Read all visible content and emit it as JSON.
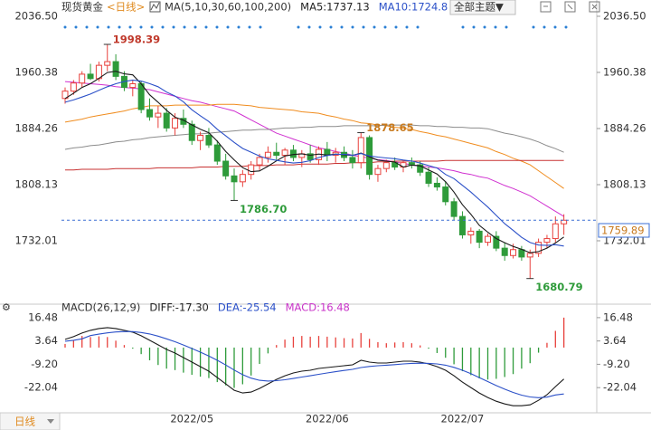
{
  "toolbar": {
    "symbol": "现货黄金",
    "period": "<日线>",
    "theme": "全部主题▼",
    "period_selector": "日线"
  },
  "chart_data": {
    "type": "candlestick",
    "indicator_label": "MA(5,10,30,60,100,200)",
    "ma_readouts": [
      {
        "text": "MA5:1737.13",
        "color": "#222222"
      },
      {
        "text": "MA10:1724.8",
        "color": "#2b50c8"
      }
    ],
    "categories": [
      null,
      null,
      null,
      null,
      null,
      null,
      null,
      null,
      null,
      null,
      null,
      null,
      null,
      null,
      null,
      "2022/05",
      null,
      null,
      null,
      null,
      null,
      null,
      null,
      null,
      null,
      null,
      null,
      null,
      null,
      null,
      null,
      "2022/06",
      null,
      null,
      null,
      null,
      null,
      null,
      null,
      null,
      null,
      null,
      null,
      null,
      null,
      null,
      null,
      "2022/07",
      null,
      null,
      null,
      null,
      null,
      null,
      null,
      null,
      null,
      null,
      null,
      null
    ],
    "open": [
      1925,
      1935,
      1946,
      1958,
      1952,
      1970,
      1975,
      1955,
      1940,
      1945,
      1910,
      1900,
      1905,
      1885,
      1898,
      1890,
      1868,
      1875,
      1862,
      1840,
      1820,
      1812,
      1822,
      1835,
      1845,
      1852,
      1848,
      1855,
      1845,
      1850,
      1842,
      1856,
      1848,
      1852,
      1845,
      1838,
      1872,
      1822,
      1830,
      1838,
      1832,
      1838,
      1835,
      1825,
      1810,
      1805,
      1785,
      1765,
      1740,
      1745,
      1730,
      1738,
      1722,
      1712,
      1720,
      1710,
      1715,
      1730,
      1735,
      1755
    ],
    "high": [
      1940,
      1950,
      1962,
      1972,
      1975,
      1998.39,
      1985,
      1962,
      1950,
      1948,
      1925,
      1915,
      1912,
      1905,
      1910,
      1895,
      1880,
      1885,
      1868,
      1850,
      1830,
      1828,
      1840,
      1850,
      1860,
      1865,
      1858,
      1862,
      1855,
      1862,
      1860,
      1866,
      1858,
      1860,
      1855,
      1878.65,
      1875,
      1835,
      1842,
      1845,
      1842,
      1845,
      1840,
      1832,
      1818,
      1812,
      1790,
      1772,
      1750,
      1748,
      1742,
      1745,
      1730,
      1728,
      1725,
      1720,
      1735,
      1740,
      1765,
      1768
    ],
    "low": [
      1918,
      1930,
      1940,
      1950,
      1948,
      1962,
      1950,
      1935,
      1928,
      1905,
      1895,
      1885,
      1880,
      1875,
      1885,
      1862,
      1855,
      1858,
      1835,
      1815,
      1786.7,
      1805,
      1815,
      1828,
      1838,
      1842,
      1835,
      1840,
      1832,
      1838,
      1835,
      1840,
      1838,
      1840,
      1830,
      1830,
      1815,
      1812,
      1825,
      1828,
      1825,
      1830,
      1820,
      1805,
      1800,
      1780,
      1760,
      1735,
      1728,
      1722,
      1725,
      1718,
      1705,
      1708,
      1705,
      1680.79,
      1710,
      1722,
      1730,
      1740
    ],
    "close": [
      1935,
      1946,
      1958,
      1952,
      1970,
      1975,
      1955,
      1940,
      1945,
      1910,
      1900,
      1905,
      1885,
      1898,
      1890,
      1868,
      1875,
      1862,
      1840,
      1820,
      1812,
      1822,
      1835,
      1845,
      1852,
      1848,
      1855,
      1845,
      1850,
      1842,
      1856,
      1848,
      1852,
      1845,
      1838,
      1872,
      1822,
      1830,
      1838,
      1832,
      1838,
      1835,
      1825,
      1810,
      1805,
      1785,
      1765,
      1740,
      1745,
      1730,
      1738,
      1722,
      1712,
      1720,
      1710,
      1715,
      1730,
      1735,
      1755,
      1759.89
    ],
    "up_color": "#e8413c",
    "down_color": "#2e9b3a",
    "ma_lines": [
      {
        "color": "#1a1a1a",
        "values": [
          1925,
          1932,
          1940,
          1945,
          1952.2,
          1960.2,
          1962,
          1958.4,
          1957,
          1945,
          1930,
          1920,
          1909,
          1899.6,
          1895.6,
          1889.2,
          1883.2,
          1878.6,
          1867,
          1853,
          1841.8,
          1831.2,
          1825.8,
          1826.8,
          1833.2,
          1840.4,
          1847,
          1849,
          1850,
          1848,
          1849.6,
          1848.2,
          1849.6,
          1848.6,
          1847.8,
          1851,
          1845.8,
          1841.4,
          1840,
          1838.8,
          1832,
          1834.6,
          1833.6,
          1828,
          1822.6,
          1812,
          1798,
          1781,
          1768,
          1753,
          1743.6,
          1735,
          1729.4,
          1724.4,
          1720.4,
          1715.8,
          1717.4,
          1722,
          1729,
          1737.13
        ]
      },
      {
        "color": "#2b50c8",
        "values": [
          1920,
          1923,
          1927,
          1931,
          1936,
          1941,
          1945,
          1948,
          1950,
          1948.6,
          1945.1,
          1941,
          1933.7,
          1928.3,
          1920.3,
          1909.6,
          1901.6,
          1893.8,
          1883.3,
          1874.3,
          1865.5,
          1857.2,
          1852.2,
          1846.9,
          1843.1,
          1841.1,
          1839.1,
          1837.4,
          1838.4,
          1840.6,
          1845,
          1847.6,
          1849.3,
          1849.3,
          1847.9,
          1850.3,
          1847,
          1845.5,
          1844.3,
          1843.3,
          1841.5,
          1840.2,
          1837.5,
          1834,
          1830.7,
          1822,
          1816.3,
          1807.3,
          1798,
          1787.8,
          1777.8,
          1766.5,
          1755.2,
          1746.2,
          1736.7,
          1729.7,
          1726.2,
          1725.7,
          1726.7,
          1724.8
        ]
      },
      {
        "color": "#d030d0",
        "values": [
          1948,
          1947,
          1946,
          1945,
          1944,
          1943,
          1941,
          1940,
          1939,
          1938,
          1937,
          1934,
          1931,
          1928,
          1925,
          1922,
          1920,
          1917,
          1914,
          1911,
          1908,
          1902,
          1896,
          1890,
          1884,
          1878,
          1874,
          1870,
          1866,
          1862,
          1858,
          1856,
          1853,
          1851,
          1848,
          1846,
          1844,
          1842,
          1841,
          1839,
          1837,
          1835,
          1834,
          1832,
          1831,
          1829,
          1827,
          1824,
          1822,
          1819,
          1817,
          1812,
          1807,
          1803,
          1798,
          1793,
          1786,
          1779,
          1772,
          1765
        ]
      },
      {
        "color": "#f08c1e",
        "values": [
          1893,
          1895,
          1897,
          1900,
          1902,
          1904,
          1906,
          1908,
          1911,
          1913,
          1915,
          1915,
          1915,
          1916,
          1916,
          1916,
          1916,
          1916,
          1917,
          1917,
          1917,
          1916,
          1915,
          1913,
          1912,
          1911,
          1910,
          1909,
          1907,
          1906,
          1905,
          1902,
          1900,
          1897,
          1895,
          1892,
          1891,
          1889,
          1888,
          1886,
          1885,
          1883,
          1880,
          1878,
          1875,
          1873,
          1870,
          1867,
          1864,
          1861,
          1858,
          1853,
          1849,
          1844,
          1840,
          1835,
          1827,
          1819,
          1811,
          1803
        ]
      },
      {
        "color": "#c83232",
        "values": [
          1828,
          1828,
          1829,
          1829,
          1829,
          1829,
          1830,
          1830,
          1830,
          1830,
          1830,
          1831,
          1831,
          1831,
          1831,
          1831,
          1832,
          1832,
          1832,
          1833,
          1833,
          1833,
          1834,
          1834,
          1834,
          1835,
          1835,
          1835,
          1836,
          1836,
          1836,
          1836,
          1837,
          1837,
          1838,
          1838,
          1838,
          1839,
          1839,
          1840,
          1840,
          1840,
          1840,
          1840,
          1840,
          1841,
          1841,
          1841,
          1841,
          1841,
          1841,
          1841,
          1841,
          1841,
          1841,
          1841,
          1841,
          1841,
          1841,
          1841
        ]
      },
      {
        "color": "#8c8c8c",
        "values": [
          1856,
          1858,
          1859,
          1861,
          1862,
          1864,
          1866,
          1867,
          1869,
          1870,
          1872,
          1873,
          1874,
          1875,
          1876,
          1877,
          1877,
          1878,
          1879,
          1880,
          1881,
          1882,
          1882,
          1883,
          1883,
          1884,
          1885,
          1885,
          1886,
          1886,
          1887,
          1887,
          1887,
          1888,
          1888,
          1888,
          1888,
          1888,
          1889,
          1889,
          1889,
          1889,
          1888,
          1888,
          1887,
          1887,
          1886,
          1886,
          1885,
          1885,
          1884,
          1881,
          1878,
          1876,
          1873,
          1870,
          1866,
          1861,
          1857,
          1852
        ]
      }
    ],
    "annotations": [
      {
        "value": 1998.39,
        "label": "1998.39",
        "color": "#c0392b"
      },
      {
        "value": 1786.7,
        "label": "1786.70",
        "color": "#2e9b3a"
      },
      {
        "value": 1878.65,
        "label": "1878.65",
        "color": "#c87a1e"
      },
      {
        "value": 1680.79,
        "label": "1680.79",
        "color": "#2e9b3a"
      }
    ],
    "last_price_color": "#3b6fd4",
    "ylim": [
      1653.4,
      2046.3
    ],
    "yticks": [
      {
        "value": 2036.5,
        "label": "2036.50"
      },
      1960.38,
      1884.26,
      1808.13,
      1732.01
    ],
    "macd": {
      "type": "macd",
      "title": "MACD(26,12,9)",
      "readouts": [
        {
          "text": "DIFF:-17.30",
          "color": "#222222"
        },
        {
          "text": "DEA:-25.54",
          "color": "#2b50c8"
        },
        {
          "text": "MACD:16.48",
          "color": "#c832c8"
        }
      ],
      "diff": [
        4.5,
        6,
        8,
        9.5,
        10.5,
        11,
        10.5,
        9.5,
        8.5,
        6.5,
        4,
        1.5,
        -1,
        -3,
        -5.5,
        -8,
        -10.5,
        -13,
        -16.5,
        -20,
        -23.5,
        -25,
        -24.5,
        -22.5,
        -20,
        -17.5,
        -15.5,
        -14,
        -13,
        -12.5,
        -11.5,
        -11,
        -10.5,
        -10,
        -9.5,
        -7,
        -8,
        -8.5,
        -8.5,
        -8,
        -7.5,
        -7.5,
        -8,
        -9,
        -10.5,
        -12.5,
        -15.5,
        -19,
        -22,
        -25,
        -27.5,
        -29.5,
        -31,
        -32,
        -32,
        -31.5,
        -29,
        -26,
        -21.5,
        -17.3
      ],
      "dea": [
        3.5,
        4,
        4.8,
        6.6,
        7.4,
        8.1,
        8.6,
        8.8,
        8.8,
        8.3,
        7.5,
        6.3,
        4.8,
        3.2,
        1.4,
        -0.5,
        -2.5,
        -4.6,
        -7,
        -9.6,
        -12.4,
        -14.9,
        -16.8,
        -18,
        -18.4,
        -18.2,
        -17.7,
        -17,
        -16.2,
        -15.5,
        -14.7,
        -14,
        -13.3,
        -12.6,
        -12,
        -11,
        -10.4,
        -10,
        -9.7,
        -9.4,
        -9,
        -8.7,
        -8.6,
        -8.7,
        -9,
        -9.7,
        -10.9,
        -12.5,
        -14.4,
        -16.5,
        -18.7,
        -20.9,
        -22.9,
        -24.7,
        -26.2,
        -27.2,
        -27.6,
        -27.3,
        -26.1,
        -25.54
      ],
      "hist": [
        2,
        4,
        6.4,
        5.8,
        6.2,
        5.8,
        3.8,
        1.4,
        -0.6,
        -3.6,
        -7,
        -9.6,
        -11.6,
        -12.4,
        -13.8,
        -15,
        -16,
        -16.8,
        -19,
        -20.8,
        -22.2,
        -20.2,
        -15.4,
        -9,
        -3.2,
        1.4,
        4.4,
        6,
        6.4,
        6,
        6.4,
        6,
        5.6,
        5.2,
        5,
        8,
        4.8,
        3,
        2.4,
        2.8,
        3,
        2.4,
        1.2,
        -0.6,
        -3,
        -5.6,
        -9.2,
        -13,
        -15.2,
        -17,
        -17.6,
        -17.2,
        -16.2,
        -14.6,
        -11.6,
        -8.6,
        -2.8,
        2.6,
        9.2,
        16.48
      ],
      "diff_color": "#1a1a1a",
      "dea_color": "#2b50c8",
      "up_color": "#e8413c",
      "down_color": "#2e9b3a",
      "ylim": [
        -35.9,
        20.9
      ],
      "yticks": [
        16.48,
        3.64,
        {
          "value": -9.2,
          "label": "-9.20"
        },
        -22.04
      ]
    }
  }
}
